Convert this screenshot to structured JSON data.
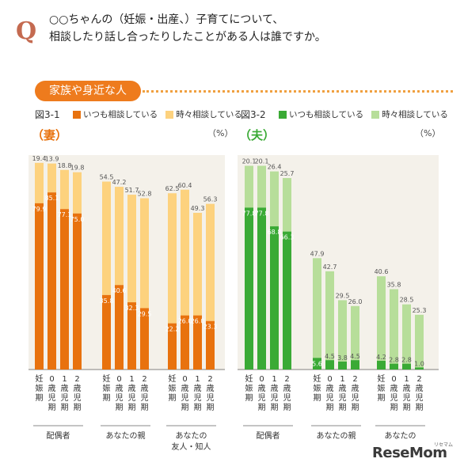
{
  "header": {
    "q_mark": "Q",
    "question_line1": "○○ちゃんの（妊娠・出産、）子育てについて、",
    "question_line2": "相談したり話し合ったりしたことがある人は誰ですか。"
  },
  "section_label": "家族や身近な人",
  "colors": {
    "wife_always": "#e8720e",
    "wife_sometimes": "#fdd27e",
    "husband_always": "#3aaa35",
    "husband_sometimes": "#b7de9a",
    "panel_bg": "#f4f1ea"
  },
  "chart_data": [
    {
      "type": "bar",
      "figure_id": "図3-1",
      "subject": "（妻）",
      "unit": "（%）",
      "stacked": true,
      "legend": [
        "いつも相談している",
        "時々相談している"
      ],
      "period_labels": [
        "妊娠期",
        "0歳児期",
        "1歳児期",
        "2歳児期"
      ],
      "groups": [
        {
          "label_lines": [
            "配偶者"
          ],
          "always": [
            79.9,
            85.1,
            77.1,
            75.0
          ],
          "sometimes": [
            19.4,
            13.9,
            18.8,
            19.8
          ]
        },
        {
          "label_lines": [
            "あなたの親"
          ],
          "always": [
            35.8,
            40.6,
            32.3,
            29.5
          ],
          "sometimes": [
            54.5,
            47.2,
            51.7,
            52.8
          ]
        },
        {
          "label_lines": [
            "あなたの",
            "友人・知人"
          ],
          "always": [
            22.2,
            26.0,
            26.0,
            23.3
          ],
          "sometimes": [
            62.5,
            60.4,
            49.3,
            56.3
          ]
        }
      ],
      "ylim": [
        0,
        100
      ]
    },
    {
      "type": "bar",
      "figure_id": "図3-2",
      "subject": "（夫）",
      "unit": "（%）",
      "stacked": true,
      "legend": [
        "いつも相談している",
        "時々相談している"
      ],
      "period_labels": [
        "妊娠期",
        "0歳児期",
        "1歳児期",
        "2歳児期"
      ],
      "groups": [
        {
          "label_lines": [
            "配偶者"
          ],
          "always": [
            77.8,
            77.8,
            68.8,
            66.3
          ],
          "sometimes": [
            20.1,
            20.1,
            26.4,
            25.7
          ]
        },
        {
          "label_lines": [
            "あなたの親"
          ],
          "always": [
            5.6,
            4.5,
            3.8,
            4.5
          ],
          "sometimes": [
            47.9,
            42.7,
            29.5,
            26.0
          ]
        },
        {
          "label_lines": [
            "あなたの"
          ],
          "always": [
            4.2,
            2.8,
            2.8,
            1.0
          ],
          "sometimes": [
            40.6,
            35.8,
            28.5,
            25.3
          ]
        }
      ],
      "ylim": [
        0,
        100
      ]
    }
  ],
  "watermark": {
    "text": "ReseMom",
    "small": "リセマム"
  }
}
